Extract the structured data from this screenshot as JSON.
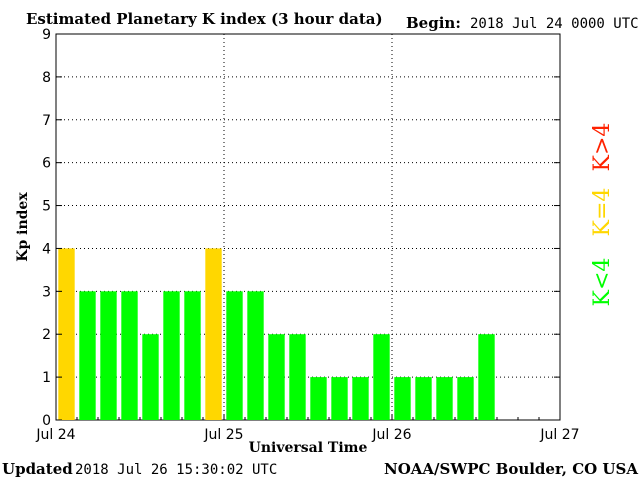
{
  "chart_data": {
    "type": "bar",
    "title": "Estimated Planetary K index (3 hour data)",
    "begin_label": "Begin:",
    "begin_value": "2018 Jul 24 0000 UTC",
    "ylabel": "Kp index",
    "xlabel": "Universal Time",
    "ylim": [
      0,
      9
    ],
    "yticks": [
      "0",
      "1",
      "2",
      "3",
      "4",
      "5",
      "6",
      "7",
      "8",
      "9"
    ],
    "xlim_days": [
      0,
      3
    ],
    "xticks": [
      {
        "day": 0,
        "label": "Jul 24"
      },
      {
        "day": 1,
        "label": "Jul 25"
      },
      {
        "day": 2,
        "label": "Jul 26"
      },
      {
        "day": 3,
        "label": "Jul 27"
      }
    ],
    "grid": true,
    "values": [
      4,
      3,
      3,
      3,
      2,
      3,
      3,
      4,
      3,
      3,
      2,
      2,
      1,
      1,
      1,
      2,
      1,
      1,
      1,
      1,
      2
    ],
    "colors": {
      "below": "#00ff00",
      "equal": "#ffd700",
      "above": "#ff2200"
    },
    "legend": [
      {
        "label": "K<4",
        "color": "#00ff00"
      },
      {
        "label": "K=4",
        "color": "#ffd700"
      },
      {
        "label": "K>4",
        "color": "#ff2200"
      }
    ],
    "legend_placement": "right"
  },
  "footer": {
    "updated_label": "Updated",
    "updated_value": "2018 Jul 26 15:30:02 UTC",
    "source": "NOAA/SWPC Boulder, CO USA"
  }
}
